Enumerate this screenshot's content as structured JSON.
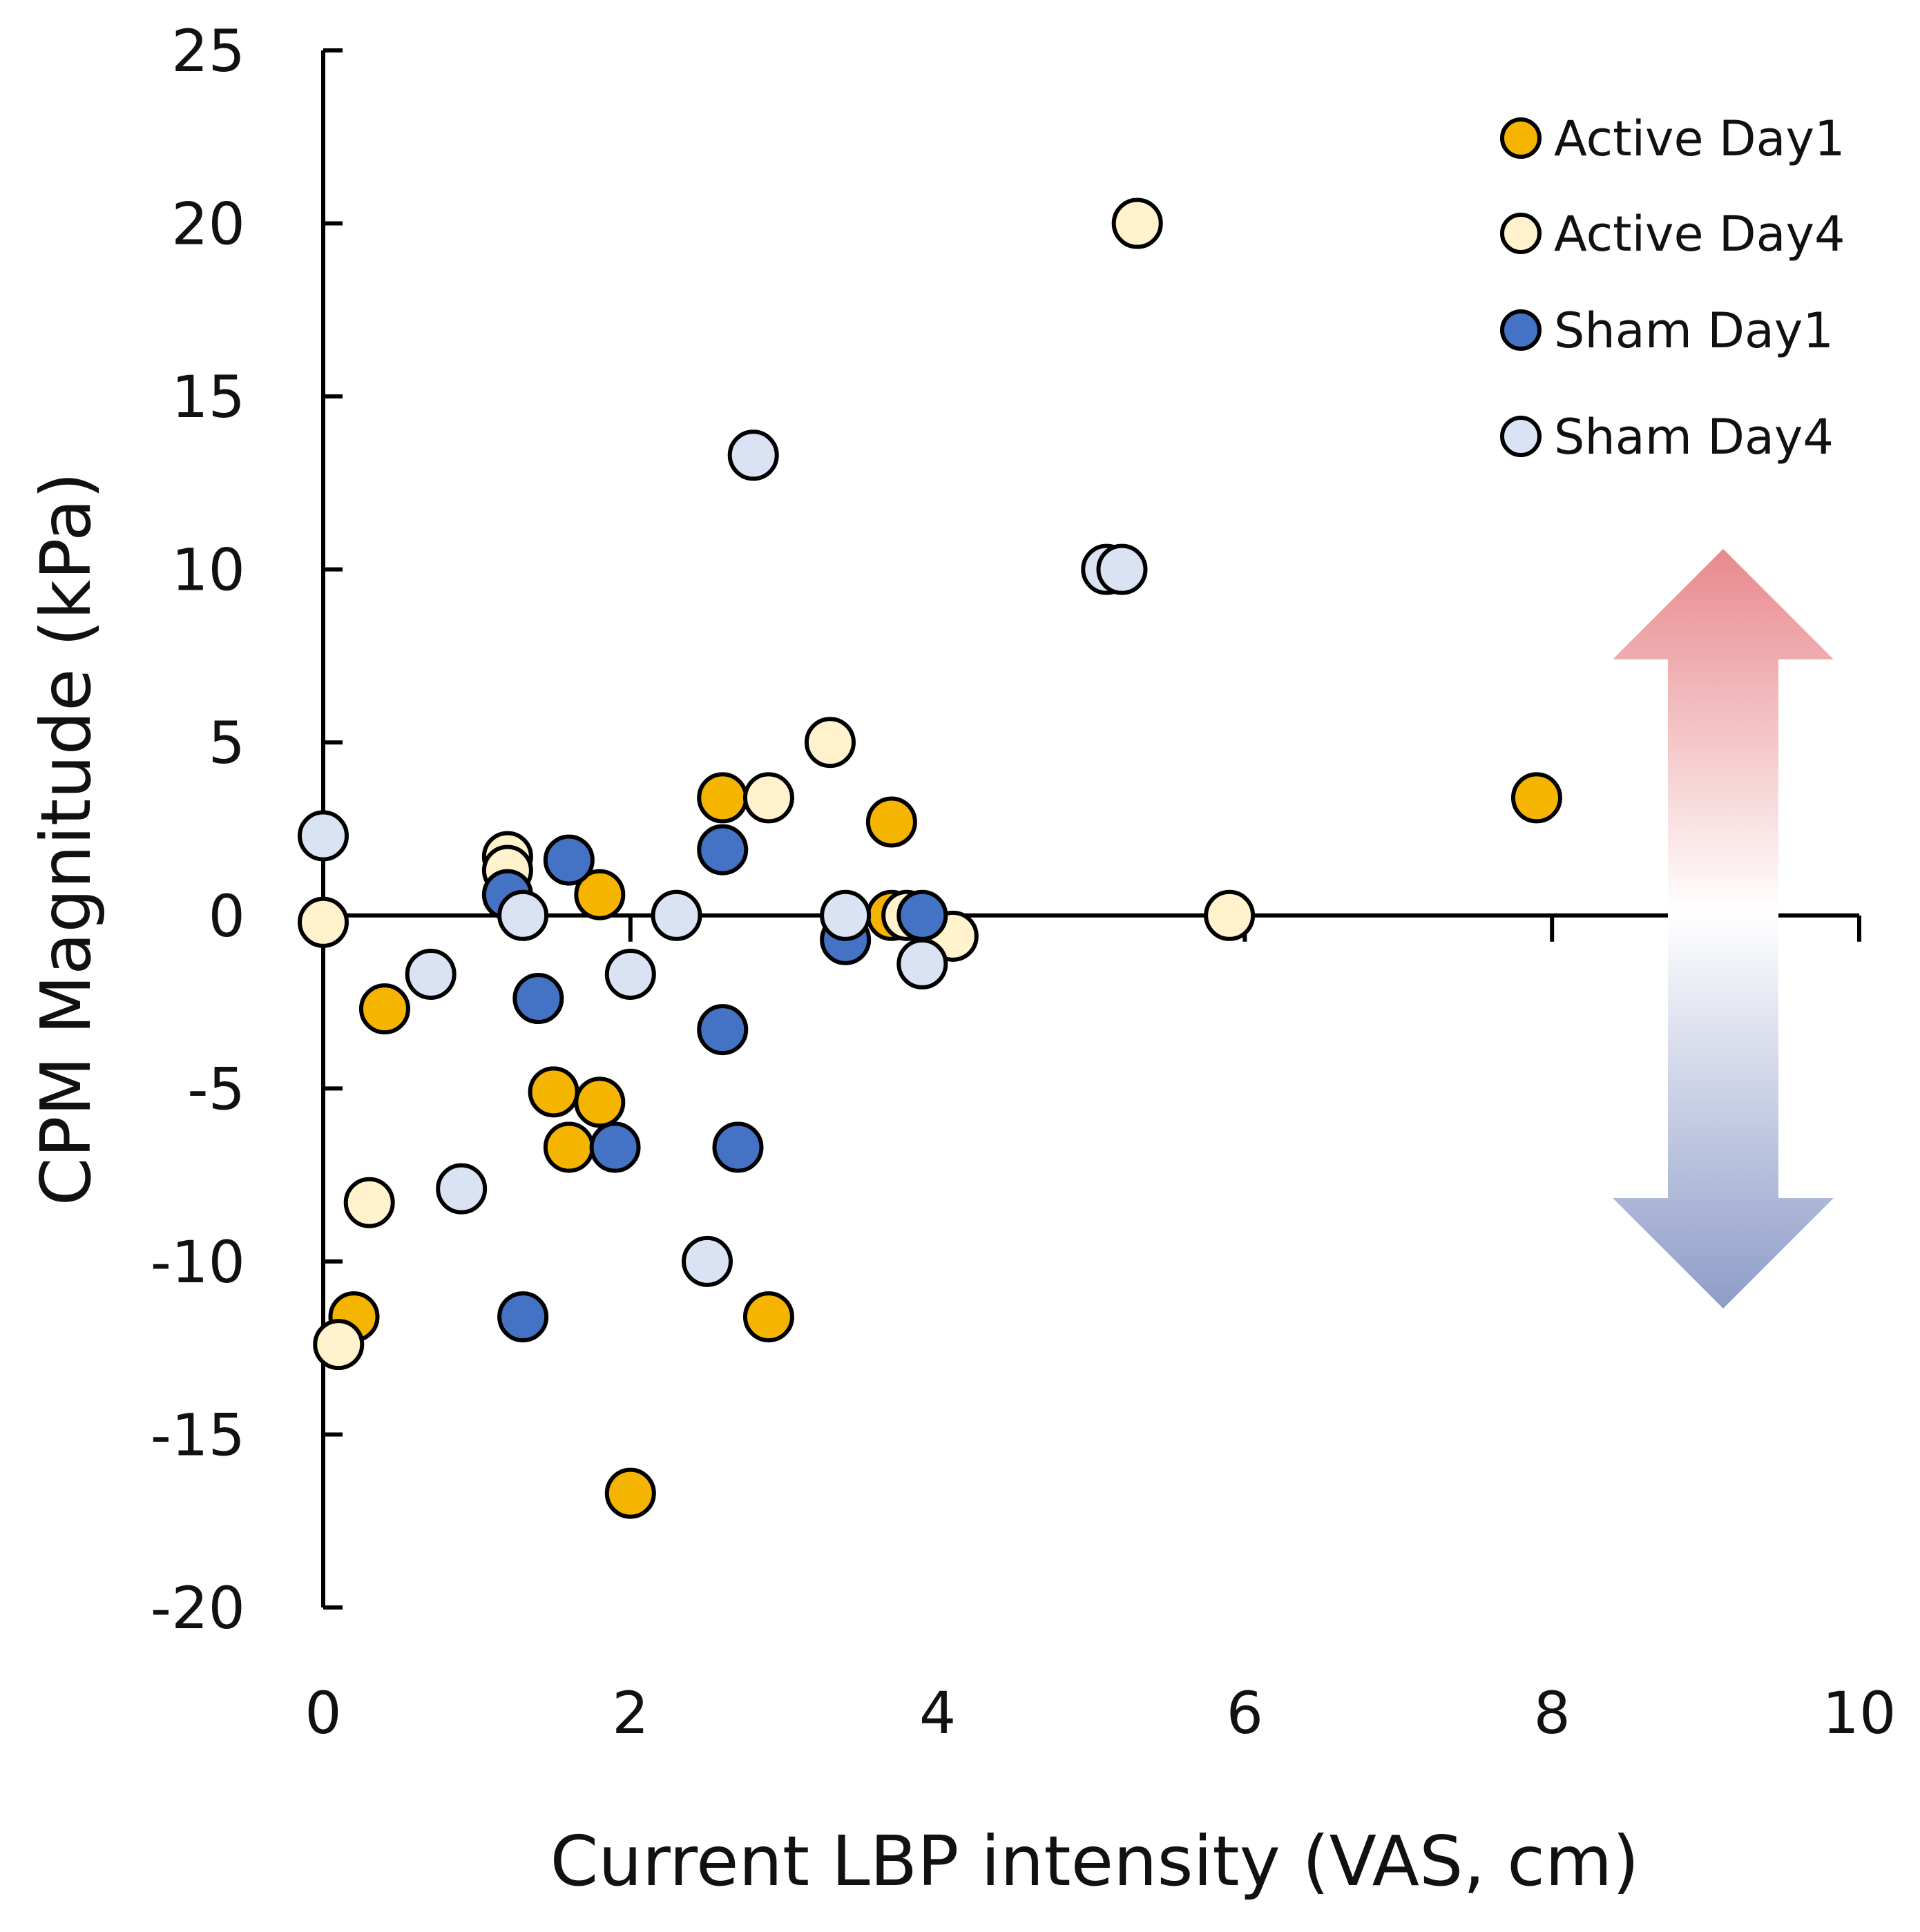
{
  "chart_data": {
    "type": "scatter",
    "title": "",
    "xlabel": "Current LBP intensity (VAS, cm)",
    "ylabel": "CPM Magnitude (kPa)",
    "xlim": [
      0,
      10
    ],
    "ylim": [
      -20,
      25
    ],
    "x_ticks": [
      "0",
      "2",
      "4",
      "6",
      "8",
      "10"
    ],
    "y_ticks": [
      "25",
      "20",
      "15",
      "10",
      "5",
      "0",
      "-5",
      "-10",
      "-15",
      "-20"
    ],
    "grid": false,
    "legend_position": "top-right",
    "annotation": "double-headed vertical arrow (red up, blue down) on right side",
    "series": [
      {
        "name": "Active Day1",
        "color": "#F5B400",
        "points": [
          [
            0.2,
            -11.6
          ],
          [
            0.4,
            -2.7
          ],
          [
            1.5,
            -5.1
          ],
          [
            1.6,
            -6.7
          ],
          [
            1.8,
            0.6
          ],
          [
            1.8,
            -5.4
          ],
          [
            2.0,
            -16.7
          ],
          [
            2.6,
            3.4
          ],
          [
            2.9,
            -11.6
          ],
          [
            3.7,
            2.7
          ],
          [
            3.7,
            0.0
          ],
          [
            7.9,
            3.4
          ]
        ]
      },
      {
        "name": "Active Day4",
        "color": "#FFF2CC",
        "points": [
          [
            0.0,
            -0.2
          ],
          [
            0.1,
            -12.4
          ],
          [
            0.3,
            -8.3
          ],
          [
            1.2,
            1.7
          ],
          [
            1.2,
            1.3
          ],
          [
            2.9,
            3.4
          ],
          [
            3.3,
            5.0
          ],
          [
            3.8,
            0.0
          ],
          [
            4.1,
            -0.6
          ],
          [
            5.3,
            20.0
          ],
          [
            5.9,
            0.0
          ]
        ]
      },
      {
        "name": "Sham Day1",
        "color": "#4472C4",
        "points": [
          [
            1.2,
            0.6
          ],
          [
            1.3,
            -11.6
          ],
          [
            1.4,
            -2.4
          ],
          [
            1.6,
            1.6
          ],
          [
            1.9,
            -6.7
          ],
          [
            2.6,
            1.9
          ],
          [
            2.6,
            -3.3
          ],
          [
            2.7,
            -6.7
          ],
          [
            3.4,
            -0.7
          ],
          [
            3.9,
            0.0
          ]
        ]
      },
      {
        "name": "Sham Day4",
        "color": "#DAE3F3",
        "points": [
          [
            0.0,
            2.3
          ],
          [
            0.7,
            -1.7
          ],
          [
            0.9,
            -7.9
          ],
          [
            1.3,
            0.0
          ],
          [
            2.0,
            -1.7
          ],
          [
            2.3,
            0.0
          ],
          [
            2.5,
            -10.0
          ],
          [
            2.8,
            13.3
          ],
          [
            3.4,
            0.0
          ],
          [
            3.9,
            -1.4
          ],
          [
            5.1,
            10.0
          ],
          [
            5.2,
            10.0
          ]
        ]
      }
    ]
  }
}
